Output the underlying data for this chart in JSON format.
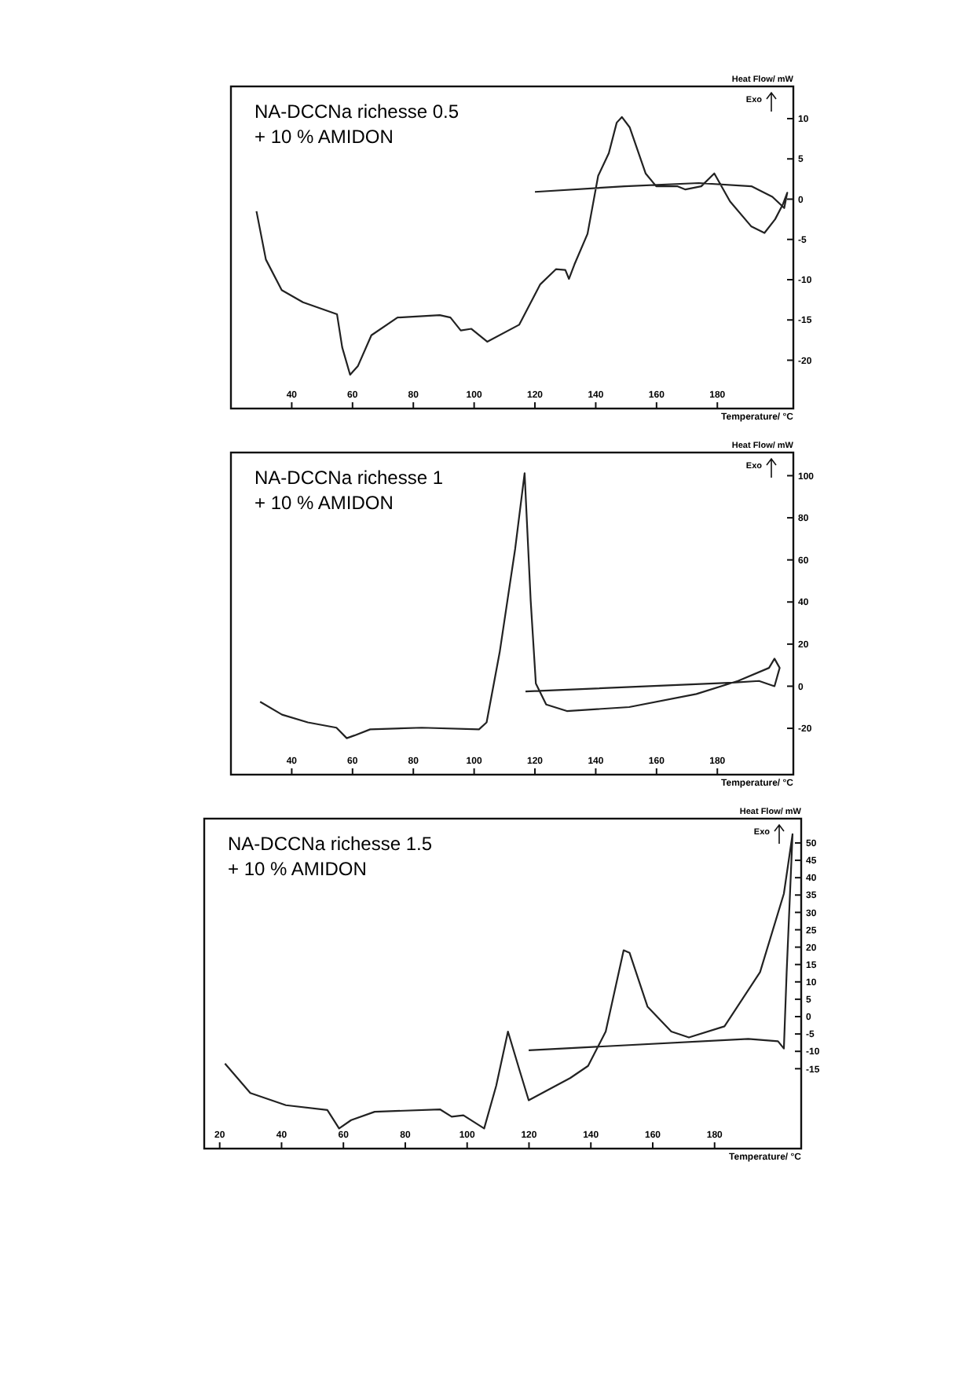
{
  "chart_data": [
    {
      "type": "line",
      "title": "NA-DCCNa richesse 0.5",
      "subtitle": "+ 10 % AMIDON",
      "xlabel": "Temperature/ °C",
      "ylabel": "Heat Flow/ mW",
      "annotations": [
        "Exo"
      ],
      "xlim": [
        20,
        205
      ],
      "ylim": [
        -26,
        14
      ],
      "xticks": [
        40,
        60,
        80,
        100,
        120,
        140,
        160,
        180
      ],
      "yticks": [
        -20,
        -15,
        -10,
        -5,
        0,
        5,
        10
      ],
      "series": [
        {
          "color": "#222222",
          "x": [
            28.4,
            31.5,
            36.7,
            43.7,
            54.9,
            56.6,
            59.2,
            61.8,
            66.2,
            74.8,
            88.7,
            92.2,
            95.6,
            99.1,
            104.3,
            114.8,
            121.7,
            126.9,
            130,
            131.2,
            133,
            137.3,
            140.8,
            144.3,
            146.9,
            148.6,
            151.2,
            156.4,
            159.9,
            166.8,
            169.5,
            174.7,
            179,
            184.2,
            191.2,
            195.5,
            199,
            201.6,
            203,
            202,
            198.1,
            191.2,
            173.9,
            149.5,
            120
          ],
          "values": [
            -1.5,
            -7.5,
            -11.3,
            -12.8,
            -14.3,
            -18.4,
            -21.8,
            -20.7,
            -16.9,
            -14.7,
            -14.4,
            -14.7,
            -16.3,
            -16.1,
            -17.7,
            -15.6,
            -10.6,
            -8.7,
            -8.8,
            -9.9,
            -8.1,
            -4.3,
            2.9,
            5.7,
            9.5,
            10.2,
            8.9,
            3.2,
            1.6,
            1.6,
            1.2,
            1.6,
            3.2,
            -0.3,
            -3.4,
            -4.2,
            -2.5,
            -0.6,
            0.8,
            -1.1,
            0.3,
            1.6,
            2.0,
            1.6,
            0.9
          ]
        }
      ]
    },
    {
      "type": "line",
      "title": "NA-DCCNa richesse 1",
      "subtitle": "+ 10 % AMIDON",
      "xlabel": "Temperature/ °C",
      "ylabel": "Heat Flow/ mW",
      "annotations": [
        "Exo"
      ],
      "xlim": [
        20,
        205
      ],
      "ylim": [
        -42,
        111
      ],
      "xticks": [
        40,
        60,
        80,
        100,
        120,
        140,
        160,
        180
      ],
      "yticks": [
        -20,
        0,
        20,
        40,
        60,
        80,
        100
      ],
      "series": [
        {
          "color": "#222222",
          "x": [
            29.6,
            36.8,
            45.3,
            54.7,
            58.1,
            60.6,
            65.8,
            82.8,
            101.6,
            104.1,
            108.4,
            113.5,
            116.6,
            118.6,
            120.3,
            123.7,
            130.5,
            151,
            173.1,
            186.8,
            197,
            198.8,
            200.5,
            198.8,
            193.7,
            185.1,
            116.9
          ],
          "values": [
            -7.4,
            -13.5,
            -17.2,
            -19.7,
            -24.7,
            -23.4,
            -20.5,
            -19.7,
            -20.5,
            -17.2,
            16.1,
            65.3,
            101.2,
            40.7,
            1.3,
            -8.7,
            -11.8,
            -9.9,
            -3.7,
            2.5,
            8.7,
            13.1,
            8.7,
            0,
            2.5,
            1.7,
            -2.5
          ]
        }
      ]
    },
    {
      "type": "line",
      "title": "NA-DCCNa richesse 1.5",
      "subtitle": "+ 10 % AMIDON",
      "xlabel": "Temperature/ °C",
      "ylabel": "Heat Flow/ mW",
      "annotations": [
        "Exo"
      ],
      "xlim": [
        15,
        208
      ],
      "ylim": [
        -38,
        57
      ],
      "xticks": [
        20,
        40,
        60,
        80,
        100,
        120,
        140,
        160,
        180
      ],
      "yticks": [
        -15,
        -10,
        -5,
        0,
        5,
        10,
        15,
        20,
        25,
        30,
        35,
        40,
        45,
        50
      ],
      "series": [
        {
          "color": "#222222",
          "x": [
            21.7,
            29.9,
            41.4,
            54.8,
            58.6,
            62.5,
            70.1,
            91.2,
            95,
            98.8,
            105.5,
            109.4,
            113.2,
            117,
            119.9,
            125.7,
            133.3,
            139.1,
            144.8,
            150.6,
            152.5,
            158.3,
            166,
            171.7,
            183.2,
            194.7,
            202.4,
            205.2,
            203.3,
            202.4,
            200.5,
            190.9,
            119.9
          ],
          "values": [
            -13.5,
            -22,
            -25.5,
            -26.9,
            -32.2,
            -29.8,
            -27.4,
            -26.7,
            -28.8,
            -28.4,
            -32.2,
            -19.9,
            -4.3,
            -15.6,
            -24.1,
            -21.3,
            -17.7,
            -14.2,
            -4.3,
            19.1,
            18.4,
            2.9,
            -4.3,
            -6,
            -2.8,
            12.8,
            35.4,
            52.5,
            12.8,
            -9.2,
            -7.1,
            -6.4,
            -9.7
          ]
        }
      ]
    }
  ]
}
